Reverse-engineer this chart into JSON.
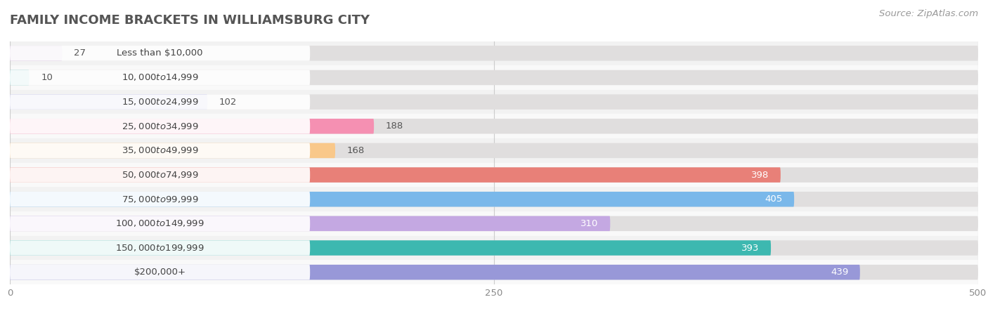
{
  "title": "FAMILY INCOME BRACKETS IN WILLIAMSBURG CITY",
  "source": "Source: ZipAtlas.com",
  "categories": [
    "Less than $10,000",
    "$10,000 to $14,999",
    "$15,000 to $24,999",
    "$25,000 to $34,999",
    "$35,000 to $49,999",
    "$50,000 to $74,999",
    "$75,000 to $99,999",
    "$100,000 to $149,999",
    "$150,000 to $199,999",
    "$200,000+"
  ],
  "values": [
    27,
    10,
    102,
    188,
    168,
    398,
    405,
    310,
    393,
    439
  ],
  "bar_colors": [
    "#c8aed6",
    "#72cbc8",
    "#aaaadf",
    "#f590b2",
    "#f9c88a",
    "#e88078",
    "#7ab8ea",
    "#c4a8e2",
    "#3db8b0",
    "#9898d8"
  ],
  "xlim": [
    0,
    500
  ],
  "xticks": [
    0,
    250,
    500
  ],
  "title_fontsize": 13,
  "label_fontsize": 9.5,
  "value_fontsize": 9.5,
  "source_fontsize": 9.5,
  "bar_height": 0.62,
  "row_colors": [
    "#f2f2f2",
    "#f9f9f9"
  ]
}
